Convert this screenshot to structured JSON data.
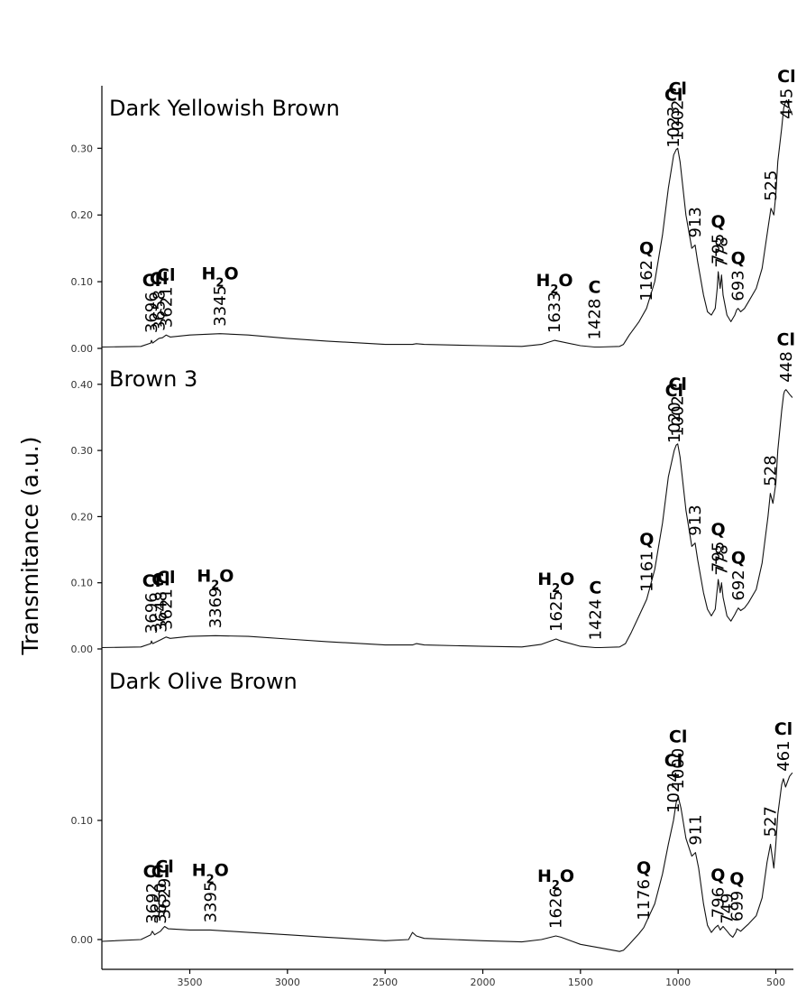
{
  "chart_data": {
    "type": "line",
    "ylabel": "Transmitance (a.u.)",
    "xlabel": "",
    "xlim": [
      3950,
      410
    ],
    "xticks": [
      3500,
      3000,
      2500,
      2000,
      1500,
      1000,
      500
    ],
    "panels": [
      {
        "title": "Dark Yellowish Brown",
        "ylim": [
          0.0,
          0.4
        ],
        "yticks": [
          "0.00",
          "0.10",
          "0.20",
          "0.30"
        ],
        "ytick_values": [
          0.0,
          0.1,
          0.2,
          0.3
        ],
        "x": [
          3950,
          3750,
          3700,
          3696,
          3690,
          3658,
          3640,
          3621,
          3600,
          3500,
          3345,
          3200,
          3000,
          2800,
          2500,
          2360,
          2340,
          2300,
          2000,
          1800,
          1700,
          1633,
          1600,
          1500,
          1428,
          1400,
          1300,
          1280,
          1250,
          1200,
          1162,
          1120,
          1080,
          1050,
          1023,
          1010,
          1002,
          990,
          960,
          930,
          913,
          900,
          870,
          850,
          830,
          810,
          800,
          795,
          785,
          778,
          770,
          750,
          730,
          710,
          700,
          693,
          680,
          660,
          640,
          600,
          570,
          540,
          525,
          510,
          500,
          490,
          470,
          460,
          450,
          445,
          430,
          415
        ],
        "y": [
          0.002,
          0.003,
          0.008,
          0.012,
          0.008,
          0.015,
          0.016,
          0.02,
          0.017,
          0.02,
          0.022,
          0.02,
          0.015,
          0.011,
          0.006,
          0.006,
          0.007,
          0.006,
          0.004,
          0.003,
          0.006,
          0.012,
          0.01,
          0.004,
          0.002,
          0.002,
          0.003,
          0.006,
          0.02,
          0.04,
          0.06,
          0.1,
          0.17,
          0.24,
          0.29,
          0.298,
          0.3,
          0.28,
          0.2,
          0.15,
          0.155,
          0.13,
          0.08,
          0.055,
          0.05,
          0.06,
          0.09,
          0.115,
          0.09,
          0.11,
          0.08,
          0.05,
          0.04,
          0.05,
          0.058,
          0.06,
          0.055,
          0.06,
          0.07,
          0.09,
          0.12,
          0.18,
          0.21,
          0.2,
          0.23,
          0.28,
          0.33,
          0.36,
          0.37,
          0.372,
          0.36,
          0.35
        ],
        "annotations": [
          {
            "label": "3696",
            "x": 3696,
            "symbol": "Cl"
          },
          {
            "label": "3658",
            "x": 3658,
            "symbol": "Cl"
          },
          {
            "label": "3621",
            "x": 3621,
            "symbol": "Cl"
          },
          {
            "label": "3345",
            "x": 3345,
            "symbol": "H2O"
          },
          {
            "label": "1633",
            "x": 1633,
            "symbol": "H2O"
          },
          {
            "label": "1428",
            "x": 1428,
            "symbol": "C"
          },
          {
            "label": "1162",
            "x": 1162,
            "symbol": "Q"
          },
          {
            "label": "1023",
            "x": 1023,
            "symbol": "Cl"
          },
          {
            "label": "1002",
            "x": 1002,
            "symbol": "Cl"
          },
          {
            "label": "913",
            "x": 913,
            "symbol": ""
          },
          {
            "label": "795",
            "x": 795,
            "symbol": "Q"
          },
          {
            "label": "778",
            "x": 778,
            "symbol": ""
          },
          {
            "label": "693",
            "x": 693,
            "symbol": "Q"
          },
          {
            "label": "525",
            "x": 525,
            "symbol": ""
          },
          {
            "label": "445",
            "x": 445,
            "symbol": "Cl"
          }
        ]
      },
      {
        "title": "Brown 3",
        "ylim": [
          0.0,
          0.42
        ],
        "yticks": [
          "0.00",
          "0.10",
          "0.20",
          "0.30",
          "0.40"
        ],
        "ytick_values": [
          0.0,
          0.1,
          0.2,
          0.3,
          0.4
        ],
        "x": [
          3950,
          3750,
          3700,
          3696,
          3690,
          3648,
          3635,
          3621,
          3600,
          3500,
          3369,
          3200,
          3000,
          2800,
          2500,
          2360,
          2340,
          2300,
          2000,
          1800,
          1700,
          1625,
          1600,
          1500,
          1424,
          1400,
          1300,
          1270,
          1240,
          1200,
          1161,
          1120,
          1080,
          1050,
          1020,
          1010,
          1002,
          990,
          960,
          930,
          913,
          900,
          870,
          850,
          830,
          810,
          800,
          795,
          785,
          778,
          770,
          750,
          730,
          710,
          700,
          692,
          680,
          660,
          640,
          600,
          570,
          540,
          528,
          515,
          500,
          490,
          470,
          460,
          455,
          448,
          430,
          415
        ],
        "y": [
          0.002,
          0.003,
          0.008,
          0.012,
          0.008,
          0.014,
          0.016,
          0.018,
          0.016,
          0.019,
          0.02,
          0.019,
          0.015,
          0.011,
          0.006,
          0.006,
          0.008,
          0.006,
          0.004,
          0.003,
          0.007,
          0.015,
          0.012,
          0.004,
          0.002,
          0.002,
          0.003,
          0.008,
          0.025,
          0.05,
          0.075,
          0.12,
          0.19,
          0.26,
          0.3,
          0.308,
          0.31,
          0.29,
          0.21,
          0.155,
          0.16,
          0.135,
          0.085,
          0.06,
          0.05,
          0.06,
          0.09,
          0.105,
          0.085,
          0.1,
          0.078,
          0.05,
          0.042,
          0.052,
          0.058,
          0.062,
          0.058,
          0.062,
          0.07,
          0.09,
          0.13,
          0.2,
          0.235,
          0.22,
          0.25,
          0.3,
          0.36,
          0.385,
          0.39,
          0.392,
          0.385,
          0.38
        ],
        "annotations": [
          {
            "label": "3696",
            "x": 3696,
            "symbol": "Cl"
          },
          {
            "label": "3648",
            "x": 3648,
            "symbol": "Cl"
          },
          {
            "label": "3621",
            "x": 3621,
            "symbol": "Cl"
          },
          {
            "label": "3369",
            "x": 3369,
            "symbol": "H2O"
          },
          {
            "label": "1625",
            "x": 1625,
            "symbol": "H2O"
          },
          {
            "label": "1424",
            "x": 1424,
            "symbol": "C"
          },
          {
            "label": "1161",
            "x": 1161,
            "symbol": "Q"
          },
          {
            "label": "1020",
            "x": 1020,
            "symbol": "Cl"
          },
          {
            "label": "1002",
            "x": 1002,
            "symbol": "Cl"
          },
          {
            "label": "913",
            "x": 913,
            "symbol": ""
          },
          {
            "label": "795",
            "x": 795,
            "symbol": "Q"
          },
          {
            "label": "778",
            "x": 778,
            "symbol": ""
          },
          {
            "label": "692",
            "x": 692,
            "symbol": "Q"
          },
          {
            "label": "528",
            "x": 528,
            "symbol": ""
          },
          {
            "label": "448",
            "x": 448,
            "symbol": "Cl"
          }
        ]
      },
      {
        "title": "Dark Olive Brown",
        "ylim": [
          -0.01,
          0.18
        ],
        "yticks": [
          "0.00",
          "0.10"
        ],
        "ytick_values": [
          0.0,
          0.1
        ],
        "x": [
          3950,
          3750,
          3700,
          3692,
          3680,
          3650,
          3640,
          3629,
          3610,
          3500,
          3395,
          3200,
          3000,
          2800,
          2500,
          2380,
          2360,
          2340,
          2300,
          2000,
          1800,
          1700,
          1626,
          1600,
          1500,
          1400,
          1300,
          1280,
          1250,
          1200,
          1176,
          1120,
          1080,
          1050,
          1024,
          1010,
          1000,
          985,
          960,
          930,
          911,
          895,
          870,
          850,
          830,
          810,
          796,
          785,
          770,
          749,
          735,
          720,
          705,
          699,
          680,
          660,
          640,
          600,
          570,
          545,
          527,
          510,
          500,
          490,
          470,
          461,
          450,
          430,
          415
        ],
        "y": [
          -0.0015,
          0.0,
          0.004,
          0.007,
          0.004,
          0.007,
          0.009,
          0.011,
          0.009,
          0.008,
          0.008,
          0.006,
          0.004,
          0.002,
          -0.001,
          0.0,
          0.006,
          0.003,
          0.001,
          -0.001,
          -0.002,
          0.0,
          0.003,
          0.002,
          -0.004,
          -0.007,
          -0.01,
          -0.009,
          -0.004,
          0.005,
          0.01,
          0.03,
          0.055,
          0.08,
          0.1,
          0.115,
          0.12,
          0.11,
          0.085,
          0.07,
          0.073,
          0.06,
          0.03,
          0.012,
          0.006,
          0.01,
          0.012,
          0.008,
          0.011,
          0.007,
          0.004,
          0.002,
          0.006,
          0.009,
          0.007,
          0.01,
          0.013,
          0.02,
          0.035,
          0.065,
          0.08,
          0.06,
          0.08,
          0.105,
          0.13,
          0.135,
          0.128,
          0.137,
          0.14
        ],
        "annotations": [
          {
            "label": "3692",
            "x": 3692,
            "symbol": "Cl"
          },
          {
            "label": "3650",
            "x": 3650,
            "symbol": "Cl"
          },
          {
            "label": "3629",
            "x": 3629,
            "symbol": "Cl"
          },
          {
            "label": "3395",
            "x": 3395,
            "symbol": "H2O"
          },
          {
            "label": "1626",
            "x": 1626,
            "symbol": "H2O"
          },
          {
            "label": "1176",
            "x": 1176,
            "symbol": "Q"
          },
          {
            "label": "1024",
            "x": 1024,
            "symbol": "Cl"
          },
          {
            "label": "1000",
            "x": 1000,
            "symbol": "Cl"
          },
          {
            "label": "911",
            "x": 911,
            "symbol": ""
          },
          {
            "label": "796",
            "x": 796,
            "symbol": "Q"
          },
          {
            "label": "749",
            "x": 749,
            "symbol": ""
          },
          {
            "label": "699",
            "x": 699,
            "symbol": "Q"
          },
          {
            "label": "527",
            "x": 527,
            "symbol": ""
          },
          {
            "label": "461",
            "x": 461,
            "symbol": "Cl"
          }
        ]
      }
    ]
  }
}
